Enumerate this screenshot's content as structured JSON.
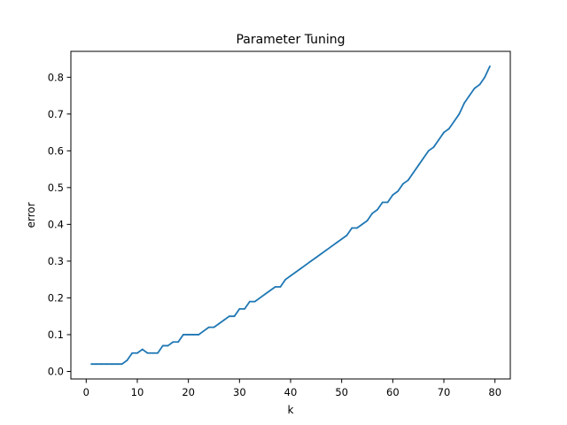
{
  "chart_data": {
    "type": "line",
    "title": "Parameter Tuning",
    "xlabel": "k",
    "ylabel": "error",
    "xlim": [
      -3,
      83
    ],
    "ylim": [
      -0.0205,
      0.8705
    ],
    "xticks": [
      0,
      10,
      20,
      30,
      40,
      50,
      60,
      70,
      80
    ],
    "yticks": [
      0.0,
      0.1,
      0.2,
      0.3,
      0.4,
      0.5,
      0.6,
      0.7,
      0.8
    ],
    "xtick_labels": [
      "0",
      "10",
      "20",
      "30",
      "40",
      "50",
      "60",
      "70",
      "80"
    ],
    "ytick_labels": [
      "0.0",
      "0.1",
      "0.2",
      "0.3",
      "0.4",
      "0.5",
      "0.6",
      "0.7",
      "0.8"
    ],
    "grid": false,
    "line_color": "#1f77b4",
    "series": [
      {
        "x": [
          1,
          2,
          3,
          4,
          5,
          6,
          7,
          8,
          9,
          10,
          11,
          12,
          13,
          14,
          15,
          16,
          17,
          18,
          19,
          20,
          21,
          22,
          23,
          24,
          25,
          26,
          27,
          28,
          29,
          30,
          31,
          32,
          33,
          34,
          35,
          36,
          37,
          38,
          39,
          40,
          41,
          42,
          43,
          44,
          45,
          46,
          47,
          48,
          49,
          50,
          51,
          52,
          53,
          54,
          55,
          56,
          57,
          58,
          59,
          60,
          61,
          62,
          63,
          64,
          65,
          66,
          67,
          68,
          69,
          70,
          71,
          72,
          73,
          74,
          75,
          76,
          77,
          78,
          79
        ],
        "values": [
          0.02,
          0.02,
          0.02,
          0.02,
          0.02,
          0.02,
          0.02,
          0.03,
          0.05,
          0.05,
          0.06,
          0.05,
          0.05,
          0.05,
          0.07,
          0.07,
          0.08,
          0.08,
          0.1,
          0.1,
          0.1,
          0.1,
          0.11,
          0.12,
          0.12,
          0.13,
          0.14,
          0.15,
          0.15,
          0.17,
          0.17,
          0.19,
          0.19,
          0.2,
          0.21,
          0.22,
          0.23,
          0.23,
          0.25,
          0.26,
          0.27,
          0.28,
          0.29,
          0.3,
          0.31,
          0.32,
          0.33,
          0.34,
          0.35,
          0.36,
          0.37,
          0.39,
          0.39,
          0.4,
          0.41,
          0.43,
          0.44,
          0.46,
          0.46,
          0.48,
          0.49,
          0.51,
          0.52,
          0.54,
          0.56,
          0.58,
          0.6,
          0.61,
          0.63,
          0.65,
          0.66,
          0.68,
          0.7,
          0.73,
          0.75,
          0.77,
          0.78,
          0.8,
          0.83
        ]
      }
    ]
  }
}
